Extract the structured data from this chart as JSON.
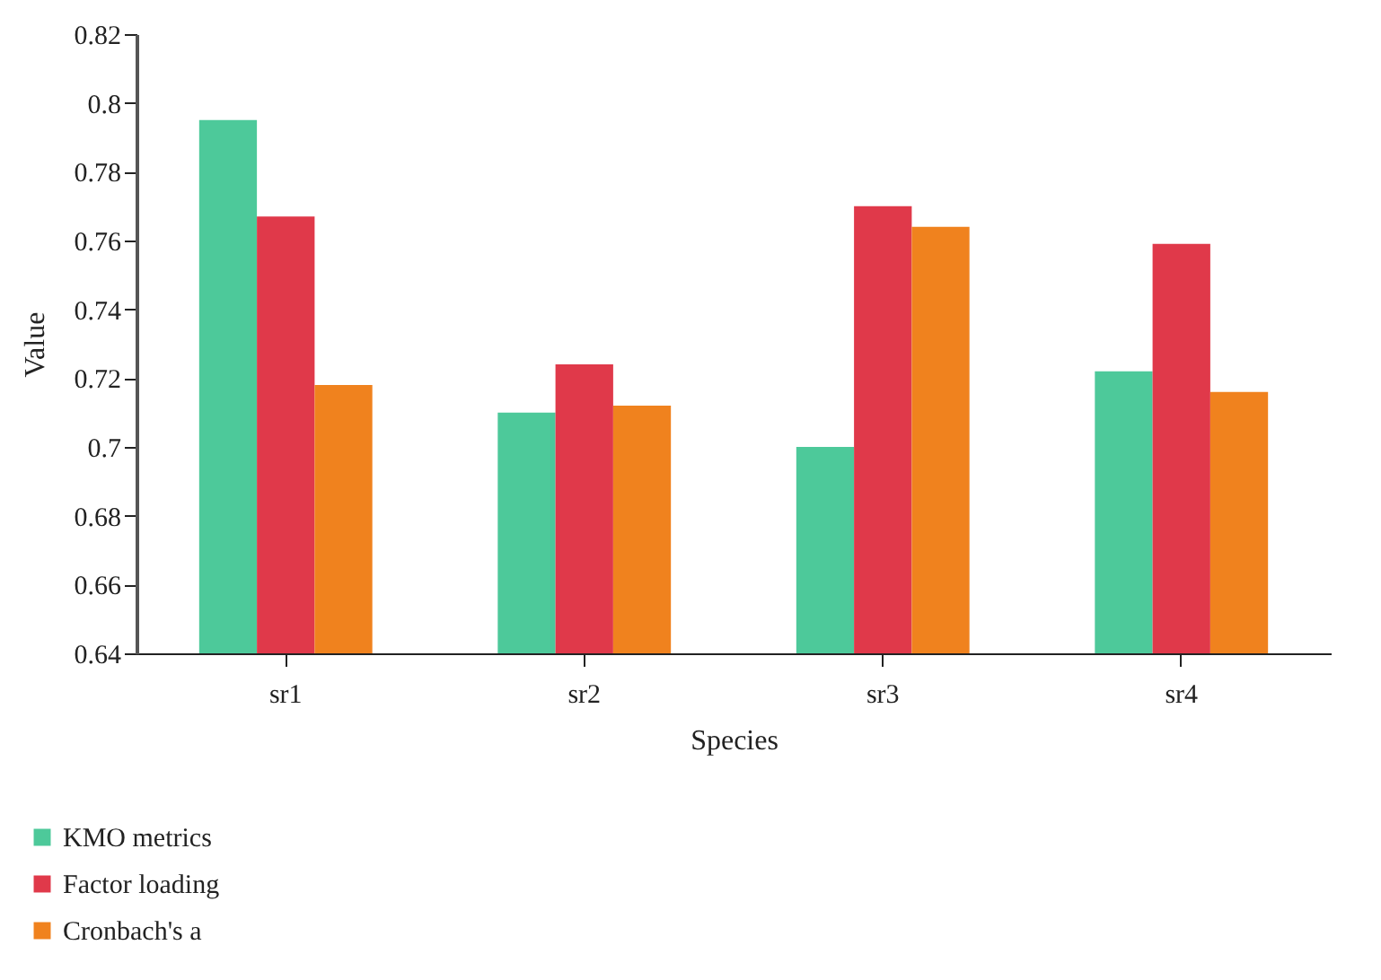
{
  "chart_data": {
    "type": "bar",
    "xlabel": "Species",
    "ylabel": "Value",
    "categories": [
      "sr1",
      "sr2",
      "sr3",
      "sr4"
    ],
    "series": [
      {
        "name": "KMO metrics",
        "color": "#4dc99a",
        "values": [
          0.795,
          0.71,
          0.7,
          0.722
        ]
      },
      {
        "name": "Factor loading",
        "color": "#e0394a",
        "values": [
          0.767,
          0.724,
          0.77,
          0.759
        ]
      },
      {
        "name": "Cronbach's a",
        "color": "#f0821e",
        "values": [
          0.718,
          0.712,
          0.764,
          0.716
        ]
      }
    ],
    "ylim": [
      0.64,
      0.82
    ],
    "yticks": [
      0.64,
      0.66,
      0.68,
      0.7,
      0.72,
      0.74,
      0.76,
      0.78,
      0.8,
      0.82
    ],
    "grid": false,
    "legend": "bottom left"
  }
}
